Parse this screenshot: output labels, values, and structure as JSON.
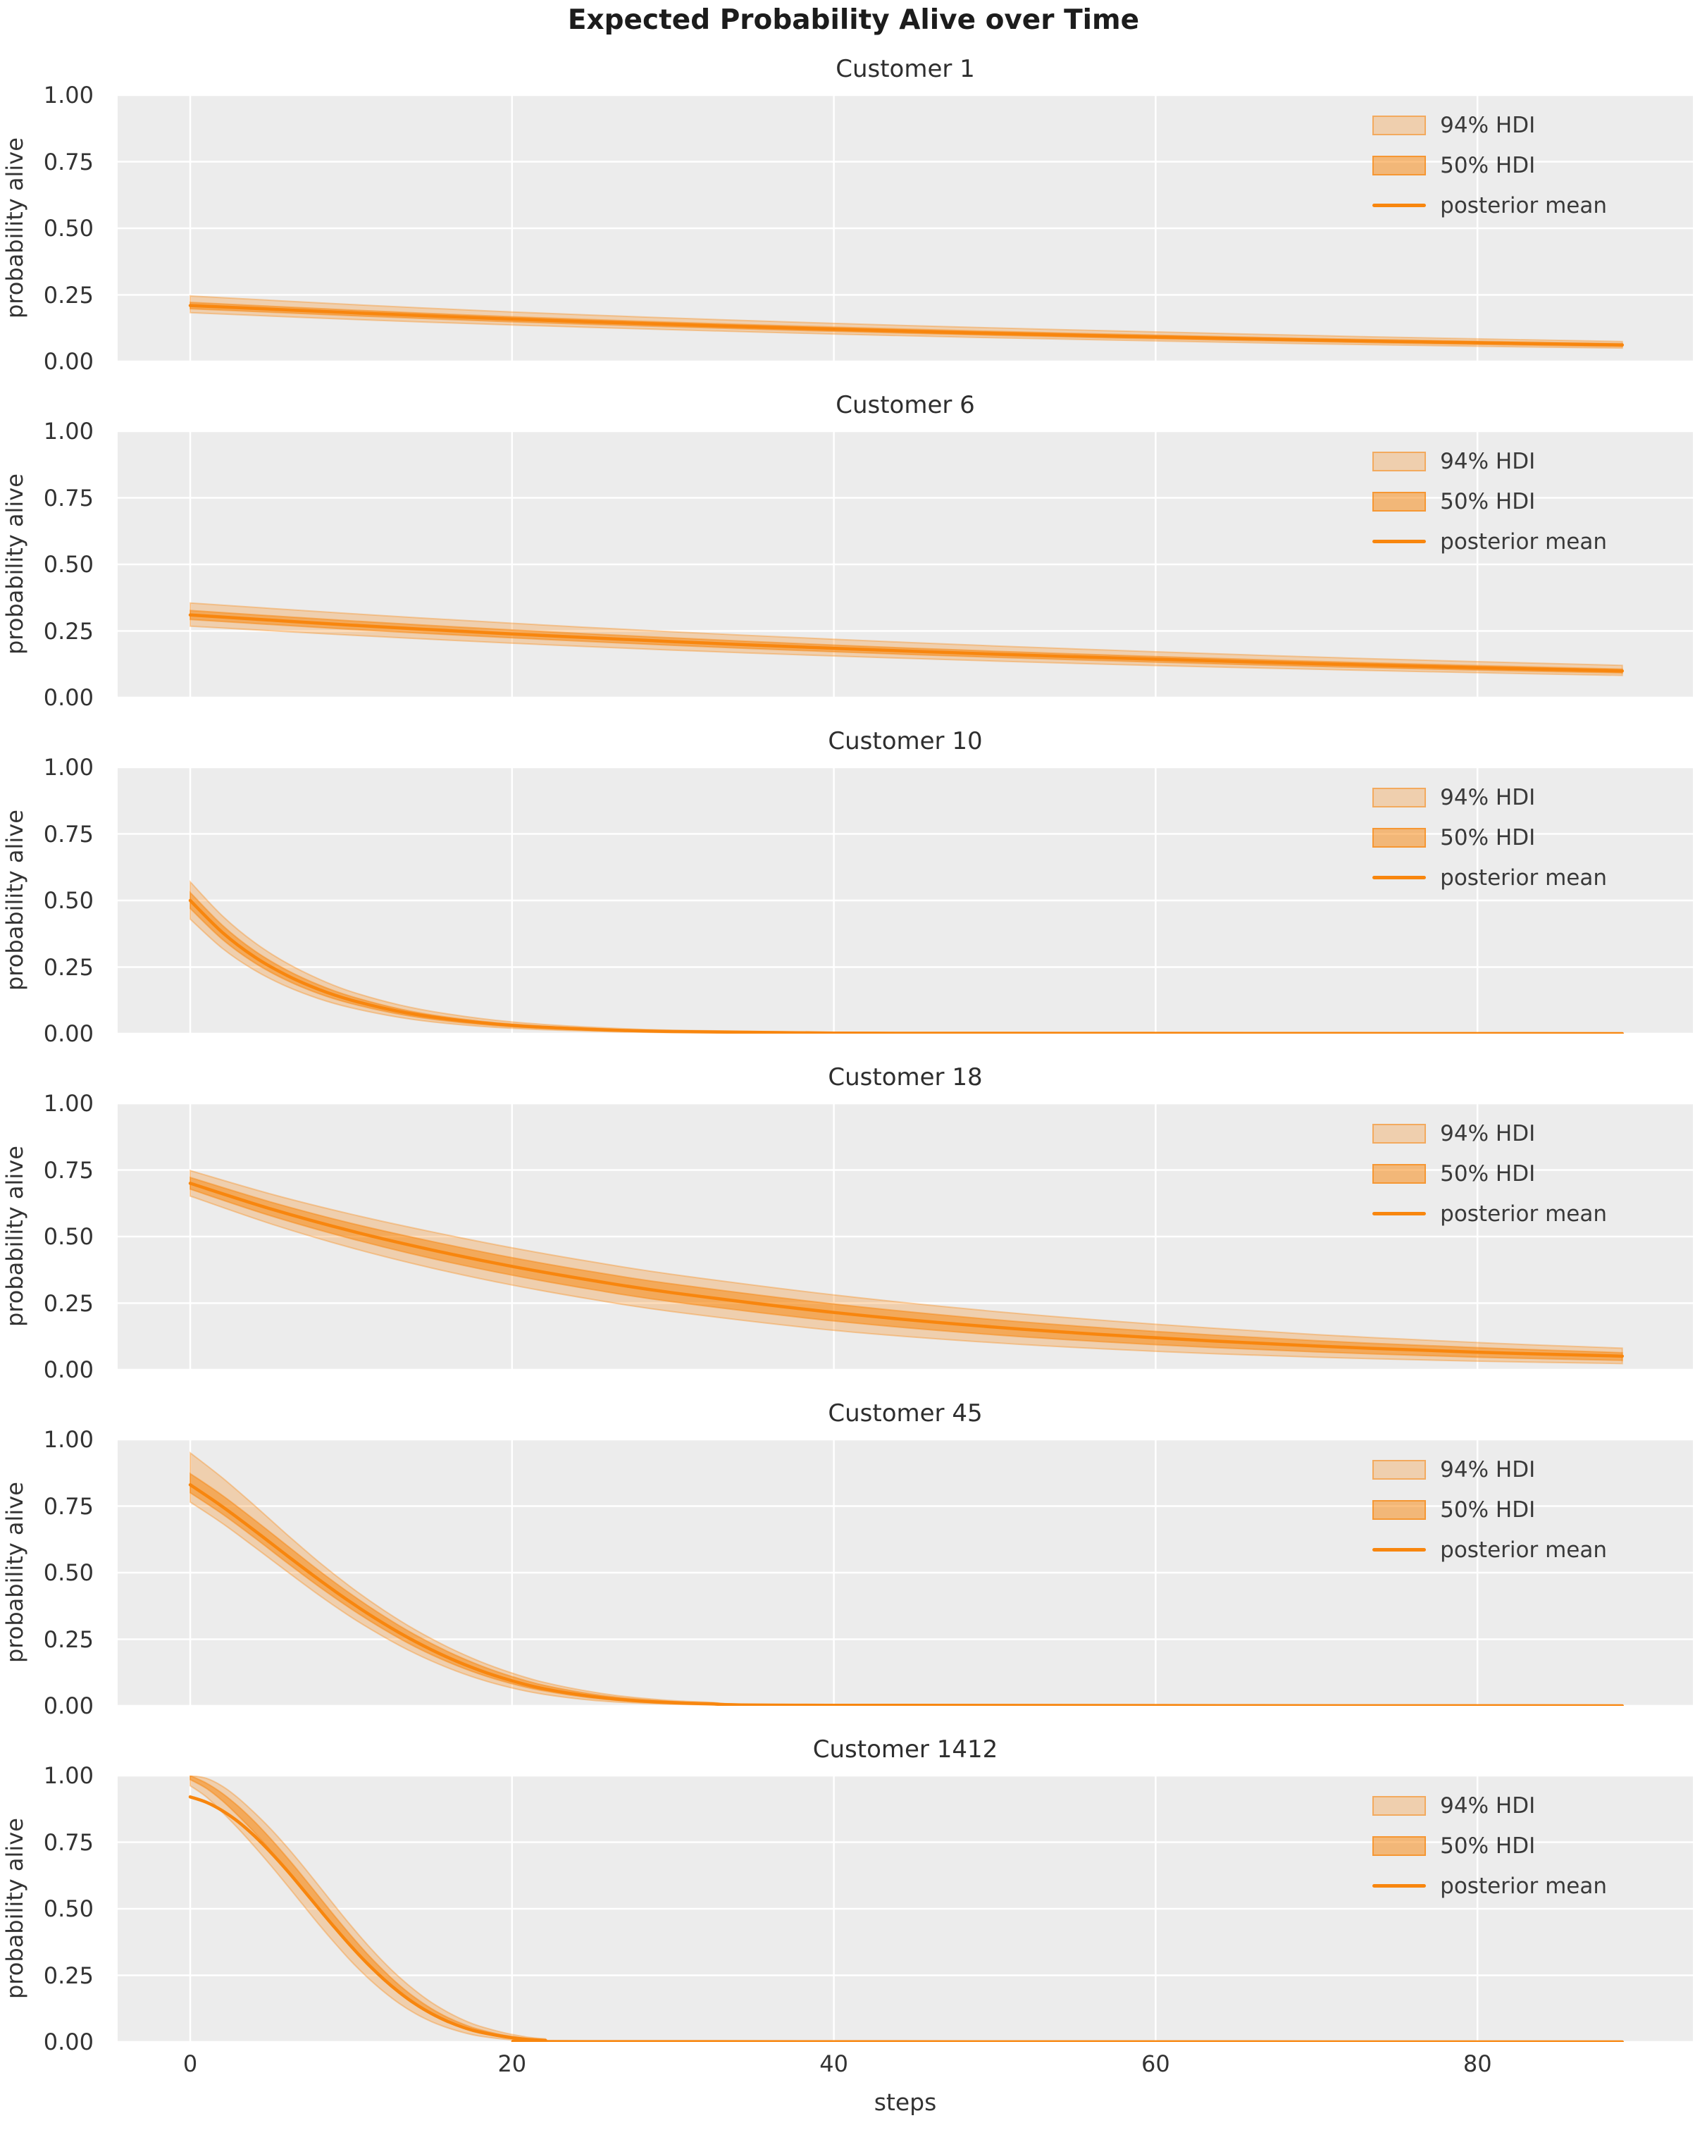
{
  "figure": {
    "suptitle": "Expected Probability Alive over Time"
  },
  "chart_data": {
    "type": "line",
    "title": "Expected Probability Alive over Time",
    "xlabel": "steps",
    "ylabel": "probability alive",
    "xlim": [
      -4.5,
      93.5
    ],
    "ylim": [
      0,
      1
    ],
    "grid": true,
    "legend_position": "upper right",
    "legend_labels": [
      "94% HDI",
      "50% HDI",
      "posterior mean"
    ],
    "xticks": [
      {
        "label": "0",
        "value": 0
      },
      {
        "label": "20",
        "value": 20
      },
      {
        "label": "40",
        "value": 40
      },
      {
        "label": "60",
        "value": 60
      },
      {
        "label": "80",
        "value": 80
      }
    ],
    "yticks": [
      {
        "label": "1.00",
        "value": 1.0
      },
      {
        "label": "0.75",
        "value": 0.75
      },
      {
        "label": "0.50",
        "value": 0.5
      },
      {
        "label": "0.25",
        "value": 0.25
      },
      {
        "label": "0.00",
        "value": 0.0
      }
    ],
    "colors": {
      "posterior_mean": "#f8860e",
      "hdi_rgb": "248,134,14",
      "hdi94_alpha": 0.28,
      "hdi50_alpha": 0.52,
      "axes_bg": "#ececec",
      "grid": "#ffffff",
      "tick_text": "#333333",
      "title_text": "#2e2e2e",
      "suptitle_text": "#1c1c1c"
    },
    "subplots": [
      {
        "title": "Customer 1",
        "t": [
          0,
          10,
          20,
          30,
          40,
          50,
          60,
          70,
          80,
          89
        ],
        "mean": [
          0.21,
          0.183,
          0.159,
          0.139,
          0.121,
          0.105,
          0.092,
          0.08,
          0.07,
          0.062
        ],
        "hdi94_lo": [
          0.183,
          0.158,
          0.137,
          0.119,
          0.103,
          0.089,
          0.077,
          0.066,
          0.057,
          0.05
        ],
        "hdi94_hi": [
          0.246,
          0.214,
          0.186,
          0.163,
          0.143,
          0.126,
          0.111,
          0.097,
          0.085,
          0.075
        ],
        "hdi50_lo": [
          0.198,
          0.172,
          0.149,
          0.13,
          0.113,
          0.098,
          0.085,
          0.074,
          0.064,
          0.056
        ],
        "hdi50_hi": [
          0.222,
          0.193,
          0.168,
          0.147,
          0.129,
          0.113,
          0.099,
          0.086,
          0.076,
          0.067
        ]
      },
      {
        "title": "Customer 6",
        "t": [
          0,
          10,
          20,
          30,
          40,
          50,
          60,
          70,
          80,
          89
        ],
        "mean": [
          0.31,
          0.272,
          0.239,
          0.21,
          0.185,
          0.163,
          0.144,
          0.127,
          0.112,
          0.1
        ],
        "hdi94_lo": [
          0.268,
          0.234,
          0.204,
          0.178,
          0.156,
          0.137,
          0.12,
          0.106,
          0.093,
          0.083
        ],
        "hdi94_hi": [
          0.355,
          0.315,
          0.279,
          0.247,
          0.219,
          0.194,
          0.172,
          0.152,
          0.135,
          0.121
        ],
        "hdi50_lo": [
          0.293,
          0.256,
          0.224,
          0.196,
          0.172,
          0.151,
          0.133,
          0.117,
          0.103,
          0.092
        ],
        "hdi50_hi": [
          0.327,
          0.288,
          0.254,
          0.224,
          0.197,
          0.174,
          0.154,
          0.136,
          0.12,
          0.107
        ]
      },
      {
        "title": "Customer 10",
        "t": [
          0,
          2,
          4,
          6,
          8,
          10,
          13,
          16,
          20,
          25,
          30,
          40,
          55,
          89
        ],
        "mean": [
          0.5,
          0.38,
          0.288,
          0.219,
          0.166,
          0.126,
          0.083,
          0.055,
          0.031,
          0.016,
          0.008,
          0.002,
          0.001,
          0.0
        ],
        "hdi94_lo": [
          0.43,
          0.32,
          0.238,
          0.177,
          0.131,
          0.097,
          0.061,
          0.038,
          0.02,
          0.009,
          0.004,
          0.001,
          0.0,
          0.0
        ],
        "hdi94_hi": [
          0.57,
          0.442,
          0.342,
          0.265,
          0.205,
          0.158,
          0.108,
          0.074,
          0.044,
          0.024,
          0.013,
          0.004,
          0.001,
          0.0
        ],
        "hdi50_lo": [
          0.47,
          0.354,
          0.266,
          0.2,
          0.15,
          0.113,
          0.073,
          0.047,
          0.026,
          0.013,
          0.006,
          0.002,
          0.0,
          0.0
        ],
        "hdi50_hi": [
          0.53,
          0.407,
          0.311,
          0.239,
          0.183,
          0.14,
          0.093,
          0.062,
          0.036,
          0.019,
          0.01,
          0.003,
          0.001,
          0.0
        ]
      },
      {
        "title": "Customer 18",
        "t": [
          0,
          5,
          10,
          15,
          20,
          25,
          30,
          40,
          50,
          60,
          70,
          80,
          89
        ],
        "mean": [
          0.7,
          0.604,
          0.521,
          0.45,
          0.388,
          0.335,
          0.289,
          0.215,
          0.16,
          0.12,
          0.089,
          0.066,
          0.051
        ],
        "hdi94_lo": [
          0.652,
          0.548,
          0.458,
          0.382,
          0.318,
          0.264,
          0.218,
          0.148,
          0.101,
          0.069,
          0.047,
          0.032,
          0.023
        ],
        "hdi94_hi": [
          0.748,
          0.66,
          0.584,
          0.518,
          0.458,
          0.405,
          0.358,
          0.281,
          0.219,
          0.171,
          0.132,
          0.102,
          0.081
        ],
        "hdi50_lo": [
          0.678,
          0.578,
          0.492,
          0.418,
          0.355,
          0.301,
          0.255,
          0.183,
          0.131,
          0.094,
          0.067,
          0.047,
          0.035
        ],
        "hdi50_hi": [
          0.722,
          0.63,
          0.55,
          0.482,
          0.421,
          0.368,
          0.322,
          0.247,
          0.188,
          0.144,
          0.109,
          0.083,
          0.064
        ]
      },
      {
        "title": "Customer 45",
        "t": [
          0,
          2,
          4,
          6,
          8,
          10,
          12,
          14,
          16,
          18,
          20,
          22,
          25,
          28,
          32,
          40,
          89
        ],
        "mean": [
          0.83,
          0.748,
          0.658,
          0.565,
          0.474,
          0.388,
          0.31,
          0.241,
          0.182,
          0.133,
          0.094,
          0.064,
          0.035,
          0.018,
          0.008,
          0.002,
          0.0
        ],
        "hdi94_lo": [
          0.765,
          0.685,
          0.596,
          0.505,
          0.416,
          0.333,
          0.26,
          0.196,
          0.143,
          0.1,
          0.067,
          0.043,
          0.021,
          0.01,
          0.004,
          0.001,
          0.0
        ],
        "hdi94_hi": [
          0.95,
          0.856,
          0.752,
          0.644,
          0.54,
          0.445,
          0.36,
          0.285,
          0.221,
          0.167,
          0.123,
          0.088,
          0.052,
          0.029,
          0.014,
          0.004,
          0.0
        ],
        "hdi50_lo": [
          0.8,
          0.72,
          0.631,
          0.538,
          0.448,
          0.364,
          0.288,
          0.221,
          0.165,
          0.119,
          0.083,
          0.056,
          0.029,
          0.015,
          0.006,
          0.001,
          0.0
        ],
        "hdi50_hi": [
          0.872,
          0.79,
          0.698,
          0.603,
          0.508,
          0.419,
          0.338,
          0.266,
          0.204,
          0.152,
          0.11,
          0.077,
          0.044,
          0.024,
          0.011,
          0.003,
          0.0
        ]
      },
      {
        "title": "Customer 1412",
        "t": [
          0,
          1,
          2,
          3,
          4,
          5,
          6,
          7,
          8,
          9,
          10,
          11,
          12,
          13,
          14,
          15,
          16,
          17,
          18,
          20,
          22,
          26,
          89
        ],
        "mean": [
          0.92,
          0.9,
          0.868,
          0.826,
          0.773,
          0.712,
          0.645,
          0.573,
          0.5,
          0.428,
          0.359,
          0.295,
          0.237,
          0.186,
          0.142,
          0.106,
          0.077,
          0.054,
          0.037,
          0.016,
          0.006,
          0.001,
          0.0
        ],
        "hdi94_lo": [
          0.962,
          0.92,
          0.862,
          0.8,
          0.733,
          0.663,
          0.59,
          0.515,
          0.441,
          0.37,
          0.303,
          0.243,
          0.19,
          0.144,
          0.106,
          0.076,
          0.053,
          0.035,
          0.022,
          0.008,
          0.003,
          0.0,
          0.0
        ],
        "hdi94_hi": [
          1.0,
          0.99,
          0.96,
          0.915,
          0.86,
          0.8,
          0.733,
          0.661,
          0.586,
          0.51,
          0.436,
          0.366,
          0.301,
          0.243,
          0.192,
          0.148,
          0.112,
          0.082,
          0.059,
          0.028,
          0.012,
          0.002,
          0.0
        ],
        "hdi50_lo": [
          0.985,
          0.952,
          0.905,
          0.848,
          0.786,
          0.718,
          0.646,
          0.572,
          0.497,
          0.424,
          0.355,
          0.291,
          0.233,
          0.182,
          0.139,
          0.103,
          0.074,
          0.052,
          0.035,
          0.014,
          0.005,
          0.001,
          0.0
        ],
        "hdi50_hi": [
          1.0,
          0.972,
          0.933,
          0.884,
          0.827,
          0.763,
          0.694,
          0.621,
          0.546,
          0.471,
          0.399,
          0.331,
          0.269,
          0.213,
          0.165,
          0.125,
          0.092,
          0.066,
          0.046,
          0.02,
          0.008,
          0.001,
          0.0
        ]
      }
    ]
  }
}
